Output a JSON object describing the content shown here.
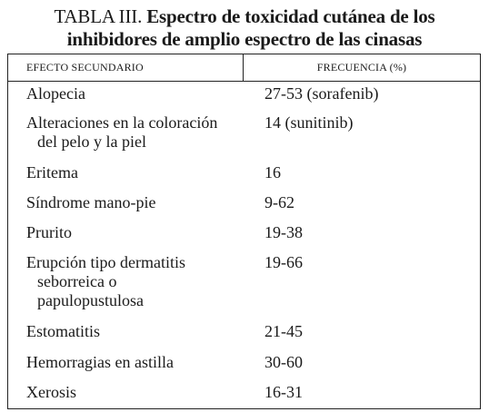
{
  "title": {
    "prefix": "TABLA III.",
    "line1": "Espectro de toxicidad cutánea de los",
    "line2": "inhibidores de amplio espectro de las cinasas"
  },
  "table": {
    "headers": [
      "EFECTO SECUNDARIO",
      "FRECUENCIA (%)"
    ],
    "rows": [
      {
        "effect": [
          "Alopecia"
        ],
        "frequency": "27-53 (sorafenib)"
      },
      {
        "effect": [
          "Alteraciones en la coloración",
          "del pelo y la piel"
        ],
        "frequency": "14 (sunitinib)"
      },
      {
        "effect": [
          "Eritema"
        ],
        "frequency": "16"
      },
      {
        "effect": [
          "Síndrome mano-pie"
        ],
        "frequency": "9-62"
      },
      {
        "effect": [
          "Prurito"
        ],
        "frequency": "19-38"
      },
      {
        "effect": [
          "Erupción tipo dermatitis",
          "seborreica o",
          "papulopustulosa"
        ],
        "frequency": "19-66"
      },
      {
        "effect": [
          "Estomatitis"
        ],
        "frequency": "21-45"
      },
      {
        "effect": [
          "Hemorragias en astilla"
        ],
        "frequency": "30-60"
      },
      {
        "effect": [
          "Xerosis"
        ],
        "frequency": "16-31"
      }
    ]
  }
}
